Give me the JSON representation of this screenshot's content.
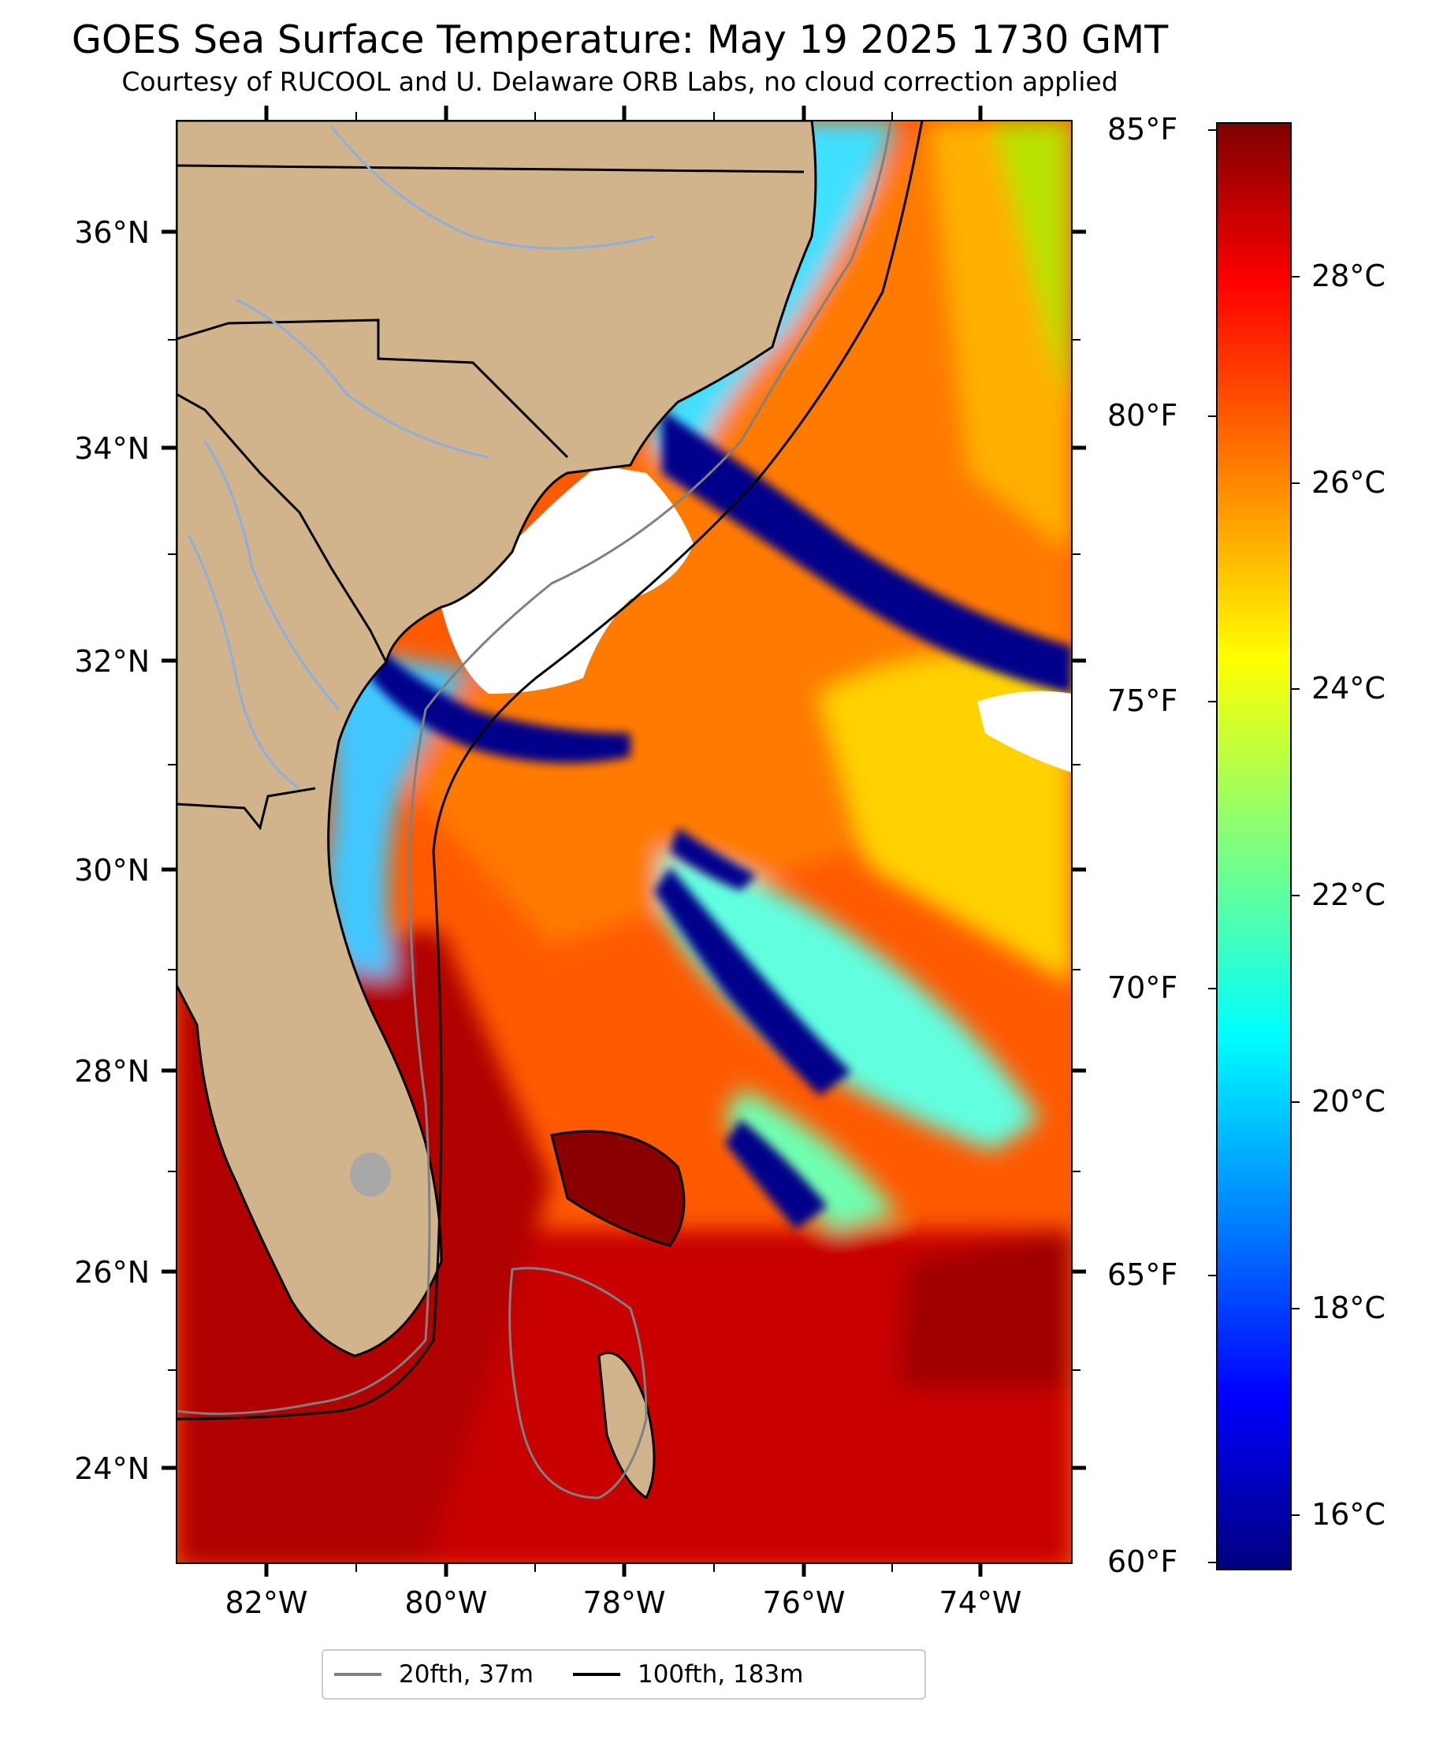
{
  "title": "GOES Sea Surface Temperature: May 19 2025 1730 GMT",
  "subtitle": "Courtesy of RUCOOL and U. Delaware ORB Labs, no cloud correction applied",
  "map": {
    "lat_labels": [
      "36°N",
      "34°N",
      "32°N",
      "30°N",
      "28°N",
      "26°N",
      "24°N"
    ],
    "lon_labels": [
      "82°W",
      "80°W",
      "78°W",
      "76°W",
      "74°W"
    ]
  },
  "colorbar": {
    "fahrenheit_labels": [
      "85°F",
      "80°F",
      "75°F",
      "70°F",
      "65°F",
      "60°F"
    ],
    "celsius_labels": [
      "28°C",
      "26°C",
      "24°C",
      "22°C",
      "20°C",
      "18°C",
      "16°C"
    ],
    "range_f": [
      60,
      85
    ],
    "colormap": "jet"
  },
  "legend": [
    {
      "label": "20fth, 37m",
      "color": "#808080"
    },
    {
      "label": "100fth, 183m",
      "color": "#000000"
    }
  ],
  "colors": {
    "land": "#d2b48c",
    "cloud_mask": "#ffffff",
    "cold_water": "#00008b",
    "warm_water": "#ff4500"
  }
}
